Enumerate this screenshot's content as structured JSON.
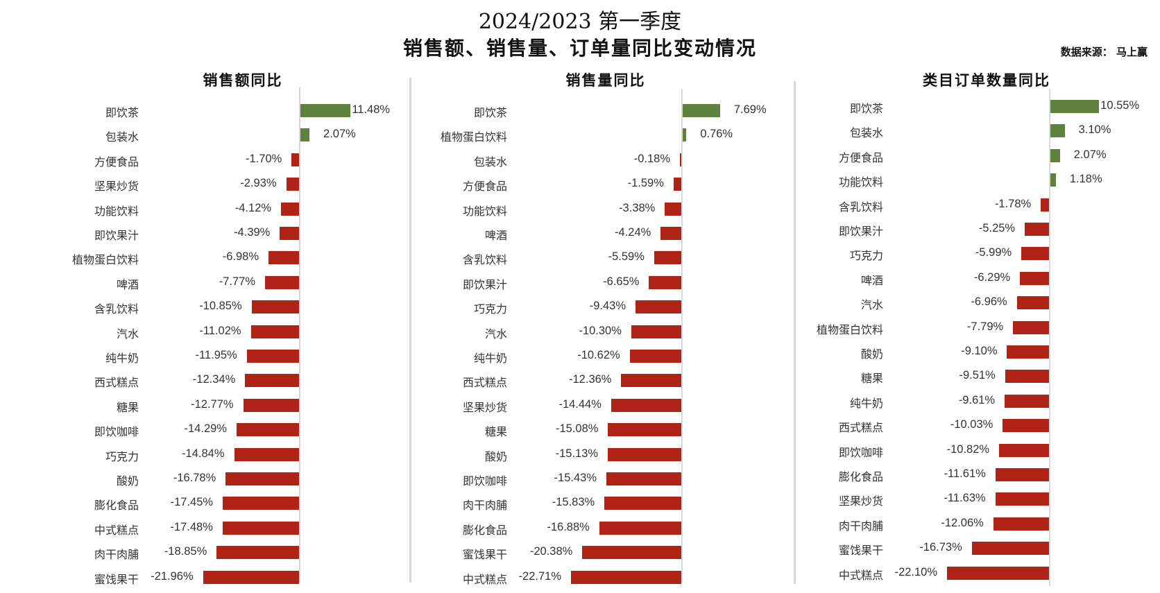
{
  "header": {
    "title_line1": "2024/2023 第一季度",
    "title_line2": "销售额、销售量、订单量同比变动情况",
    "source": "数据来源： 马上赢"
  },
  "colors": {
    "positive": "#5e813e",
    "negative": "#b02418",
    "axis": "#d9d9d9"
  },
  "chart_data": [
    {
      "type": "bar",
      "orientation": "horizontal",
      "title": "销售额同比",
      "unit": "%",
      "categories": [
        "即饮茶",
        "包装水",
        "方便食品",
        "坚果炒货",
        "功能饮料",
        "即饮果汁",
        "植物蛋白饮料",
        "啤酒",
        "含乳饮料",
        "汽水",
        "纯牛奶",
        "西式糕点",
        "糖果",
        "即饮咖啡",
        "巧克力",
        "酸奶",
        "膨化食品",
        "中式糕点",
        "肉干肉脯",
        "蜜饯果干"
      ],
      "values": [
        11.48,
        2.07,
        -1.7,
        -2.93,
        -4.12,
        -4.39,
        -6.98,
        -7.77,
        -10.85,
        -11.02,
        -11.95,
        -12.34,
        -12.77,
        -14.29,
        -14.84,
        -16.78,
        -17.45,
        -17.48,
        -18.85,
        -21.96
      ],
      "labels": [
        "11.48%",
        "2.07%",
        "-1.70%",
        "-2.93%",
        "-4.12%",
        "-4.39%",
        "-6.98%",
        "-7.77%",
        "-10.85%",
        "-11.02%",
        "-11.95%",
        "-12.34%",
        "-12.77%",
        "-14.29%",
        "-14.84%",
        "-16.78%",
        "-17.45%",
        "-17.48%",
        "-18.85%",
        "-21.96%"
      ]
    },
    {
      "type": "bar",
      "orientation": "horizontal",
      "title": "销售量同比",
      "unit": "%",
      "categories": [
        "即饮茶",
        "植物蛋白饮料",
        "包装水",
        "方便食品",
        "功能饮料",
        "啤酒",
        "含乳饮料",
        "即饮果汁",
        "巧克力",
        "汽水",
        "纯牛奶",
        "西式糕点",
        "坚果炒货",
        "糖果",
        "酸奶",
        "即饮咖啡",
        "肉干肉脯",
        "膨化食品",
        "蜜饯果干",
        "中式糕点"
      ],
      "values": [
        7.69,
        0.76,
        -0.18,
        -1.59,
        -3.38,
        -4.24,
        -5.59,
        -6.65,
        -9.43,
        -10.3,
        -10.62,
        -12.36,
        -14.44,
        -15.08,
        -15.13,
        -15.43,
        -15.83,
        -16.88,
        -20.38,
        -22.71
      ],
      "labels": [
        "7.69%",
        "0.76%",
        "-0.18%",
        "-1.59%",
        "-3.38%",
        "-4.24%",
        "-5.59%",
        "-6.65%",
        "-9.43%",
        "-10.30%",
        "-10.62%",
        "-12.36%",
        "-14.44%",
        "-15.08%",
        "-15.13%",
        "-15.43%",
        "-15.83%",
        "-16.88%",
        "-20.38%",
        "-22.71%"
      ]
    },
    {
      "type": "bar",
      "orientation": "horizontal",
      "title": "类目订单数量同比",
      "unit": "%",
      "categories": [
        "即饮茶",
        "包装水",
        "方便食品",
        "功能饮料",
        "含乳饮料",
        "即饮果汁",
        "巧克力",
        "啤酒",
        "汽水",
        "植物蛋白饮料",
        "酸奶",
        "糖果",
        "纯牛奶",
        "西式糕点",
        "即饮咖啡",
        "膨化食品",
        "坚果炒货",
        "肉干肉脯",
        "蜜饯果干",
        "中式糕点"
      ],
      "values": [
        10.55,
        3.1,
        2.07,
        1.18,
        -1.78,
        -5.25,
        -5.99,
        -6.29,
        -6.96,
        -7.79,
        -9.1,
        -9.51,
        -9.61,
        -10.03,
        -10.82,
        -11.61,
        -11.63,
        -12.06,
        -16.73,
        -22.1
      ],
      "labels": [
        "10.55%",
        "3.10%",
        "2.07%",
        "1.18%",
        "-1.78%",
        "-5.25%",
        "-5.99%",
        "-6.29%",
        "-6.96%",
        "-7.79%",
        "-9.10%",
        "-9.51%",
        "-9.61%",
        "-10.03%",
        "-10.82%",
        "-11.61%",
        "-11.63%",
        "-12.06%",
        "-16.73%",
        "-22.10%"
      ]
    }
  ]
}
